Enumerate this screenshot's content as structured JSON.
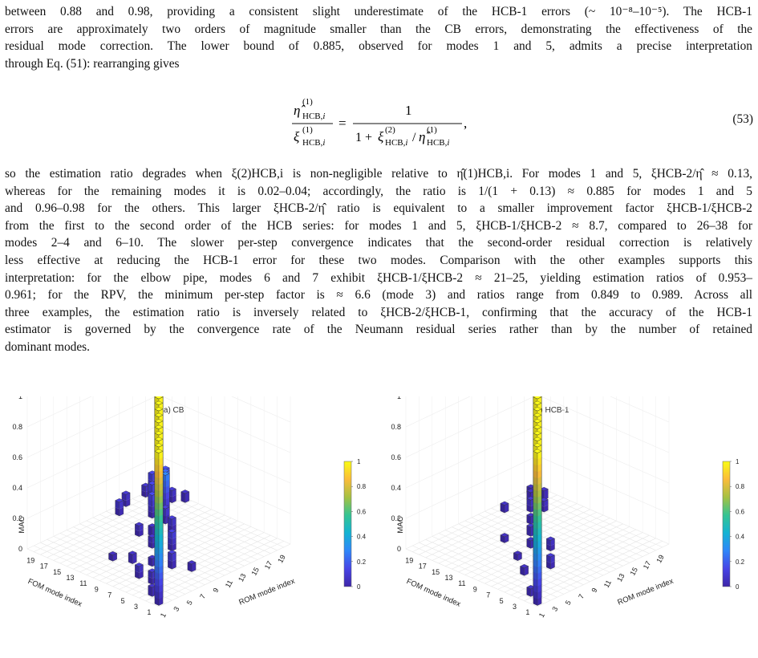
{
  "para1": {
    "lines": [
      "between 0.88 and 0.98, providing a consistent slight underestimate of the HCB-1 errors (~ 10⁻⁸–10⁻⁵). The HCB-1",
      "errors are approximately two orders of magnitude smaller than the CB errors, demonstrating the effectiveness of the",
      "residual mode correction. The lower bound of 0.885, observed for modes 1 and 5, admits a precise interpretation",
      "through Eq. (51): rearranging gives"
    ]
  },
  "equation": {
    "lhs_num": "η̂",
    "lhs_den": "ξ",
    "rhs_num": "1",
    "number": "(53)"
  },
  "para2": {
    "lines": [
      "so the estimation ratio degrades when ξ(2)HCB,i is non-negligible relative to η̂(1)HCB,i. For modes 1 and 5, ξHCB-2/η̂ ≈ 0.13,",
      "whereas for the remaining modes it is 0.02–0.04; accordingly, the ratio is 1/(1 + 0.13) ≈ 0.885 for modes 1 and 5",
      "and 0.96–0.98 for the others. This larger ξHCB-2/η̂ ratio is equivalent to a smaller improvement factor ξHCB-1/ξHCB-2",
      "from the first to the second order of the HCB series: for modes 1 and 5, ξHCB-1/ξHCB-2 ≈ 8.7, compared to 26–38 for",
      "modes 2–4 and 6–10. The slower per-step convergence indicates that the second-order residual correction is relatively",
      "less effective at reducing the HCB-1 error for these two modes. Comparison with the other examples supports this",
      "interpretation: for the elbow pipe, modes 6 and 7 exhibit ξHCB-1/ξHCB-2 ≈ 21–25, yielding estimation ratios of 0.953–",
      "0.961; for the RPV, the minimum per-step factor is ≈ 6.6 (mode 3) and ratios range from 0.849 to 0.989. Across all",
      "three examples, the estimation ratio is inversely related to ξHCB-2/ξHCB-1, confirming that the accuracy of the HCB-1",
      "estimator is governed by the convergence rate of the Neumann residual series rather than by the number of retained",
      "dominant modes."
    ]
  },
  "chart_data": [
    {
      "type": "bar3d",
      "title": "(a) CB",
      "zlabel": "MAC",
      "xlabel": "FOM mode index",
      "ylabel": "ROM mode index",
      "zlim": [
        0,
        1
      ],
      "ztick_labels": [
        "0",
        "0.2",
        "0.4",
        "0.6",
        "0.8",
        "1"
      ],
      "fom_tick_labels": [
        "1",
        "3",
        "5",
        "7",
        "9",
        "11",
        "13",
        "15",
        "17",
        "19"
      ],
      "rom_tick_labels": [
        "1",
        "3",
        "5",
        "7",
        "9",
        "11",
        "13",
        "15",
        "17",
        "19"
      ],
      "colorbar_tick_labels": [
        "0",
        "0.2",
        "0.4",
        "0.6",
        "0.8",
        "1"
      ],
      "colormap": [
        "#3e26a8",
        "#4744e6",
        "#2f86f9",
        "#14b3d3",
        "#35c492",
        "#a6c142",
        "#fbbc3a",
        "#f9fb15"
      ],
      "diagonal": [
        1.0,
        1.0,
        1.0,
        1.0,
        1.0,
        1.0,
        1.0,
        1.0,
        1.0,
        1.0,
        1.0,
        1.0,
        1.0,
        1.0,
        0.98,
        0.85,
        0.97,
        0.96,
        0.92,
        0.88
      ],
      "offdiag": [
        {
          "fom": 3,
          "rom": 2,
          "value": 0.06
        },
        {
          "fom": 5,
          "rom": 4,
          "value": 0.08
        },
        {
          "fom": 6,
          "rom": 8,
          "value": 0.1
        },
        {
          "fom": 8,
          "rom": 7,
          "value": 0.05
        },
        {
          "fom": 9,
          "rom": 11,
          "value": 0.12
        },
        {
          "fom": 11,
          "rom": 10,
          "value": 0.07
        },
        {
          "fom": 12,
          "rom": 14,
          "value": 0.09
        },
        {
          "fom": 13,
          "rom": 12,
          "value": 0.06
        },
        {
          "fom": 14,
          "rom": 15,
          "value": 0.1
        },
        {
          "fom": 15,
          "rom": 16,
          "value": 0.28
        },
        {
          "fom": 16,
          "rom": 15,
          "value": 0.15
        },
        {
          "fom": 16,
          "rom": 17,
          "value": 0.12
        },
        {
          "fom": 17,
          "rom": 18,
          "value": 0.22
        },
        {
          "fom": 18,
          "rom": 17,
          "value": 0.14
        },
        {
          "fom": 18,
          "rom": 19,
          "value": 0.11
        },
        {
          "fom": 19,
          "rom": 20,
          "value": 0.16
        },
        {
          "fom": 20,
          "rom": 19,
          "value": 0.13
        },
        {
          "fom": 17,
          "rom": 19,
          "value": 0.08
        },
        {
          "fom": 19,
          "rom": 18,
          "value": 0.1
        },
        {
          "fom": 20,
          "rom": 18,
          "value": 0.07
        },
        {
          "fom": 7,
          "rom": 4,
          "value": 0.08
        },
        {
          "fom": 10,
          "rom": 6,
          "value": 0.06
        },
        {
          "fom": 4,
          "rom": 9,
          "value": 0.05
        },
        {
          "fom": 14,
          "rom": 11,
          "value": 0.07
        },
        {
          "fom": 12,
          "rom": 5,
          "value": 0.04
        },
        {
          "fom": 19,
          "rom": 13,
          "value": 0.09
        },
        {
          "fom": 20,
          "rom": 15,
          "value": 0.08
        },
        {
          "fom": 16,
          "rom": 20,
          "value": 0.06
        }
      ]
    },
    {
      "type": "bar3d",
      "title": "(b) HCB-1",
      "zlabel": "MAC",
      "xlabel": "FOM mode index",
      "ylabel": "ROM mode index",
      "zlim": [
        0,
        1
      ],
      "ztick_labels": [
        "0",
        "0.2",
        "0.4",
        "0.6",
        "0.8",
        "1"
      ],
      "fom_tick_labels": [
        "1",
        "3",
        "5",
        "7",
        "9",
        "11",
        "13",
        "15",
        "17",
        "19"
      ],
      "rom_tick_labels": [
        "1",
        "3",
        "5",
        "7",
        "9",
        "11",
        "13",
        "15",
        "17",
        "19"
      ],
      "colorbar_tick_labels": [
        "0",
        "0.2",
        "0.4",
        "0.6",
        "0.8",
        "1"
      ],
      "colormap": [
        "#3e26a8",
        "#4744e6",
        "#2f86f9",
        "#14b3d3",
        "#35c492",
        "#a6c142",
        "#fbbc3a",
        "#f9fb15"
      ],
      "diagonal": [
        1.0,
        1.0,
        1.0,
        1.0,
        1.0,
        1.0,
        1.0,
        1.0,
        1.0,
        1.0,
        1.0,
        1.0,
        1.0,
        1.0,
        1.0,
        1.0,
        1.0,
        1.0,
        1.0,
        1.0
      ],
      "offdiag": [
        {
          "fom": 3,
          "rom": 2,
          "value": 0.05
        },
        {
          "fom": 6,
          "rom": 8,
          "value": 0.08
        },
        {
          "fom": 9,
          "rom": 11,
          "value": 0.07
        },
        {
          "fom": 11,
          "rom": 10,
          "value": 0.05
        },
        {
          "fom": 13,
          "rom": 12,
          "value": 0.06
        },
        {
          "fom": 15,
          "rom": 14,
          "value": 0.05
        },
        {
          "fom": 16,
          "rom": 17,
          "value": 0.07
        },
        {
          "fom": 17,
          "rom": 16,
          "value": 0.08
        },
        {
          "fom": 18,
          "rom": 19,
          "value": 0.06
        },
        {
          "fom": 19,
          "rom": 18,
          "value": 0.05
        },
        {
          "fom": 20,
          "rom": 19,
          "value": 0.04
        },
        {
          "fom": 10,
          "rom": 7,
          "value": 0.04
        },
        {
          "fom": 7,
          "rom": 5,
          "value": 0.05
        },
        {
          "fom": 14,
          "rom": 9,
          "value": 0.04
        },
        {
          "fom": 19,
          "rom": 14,
          "value": 0.05
        }
      ]
    }
  ]
}
